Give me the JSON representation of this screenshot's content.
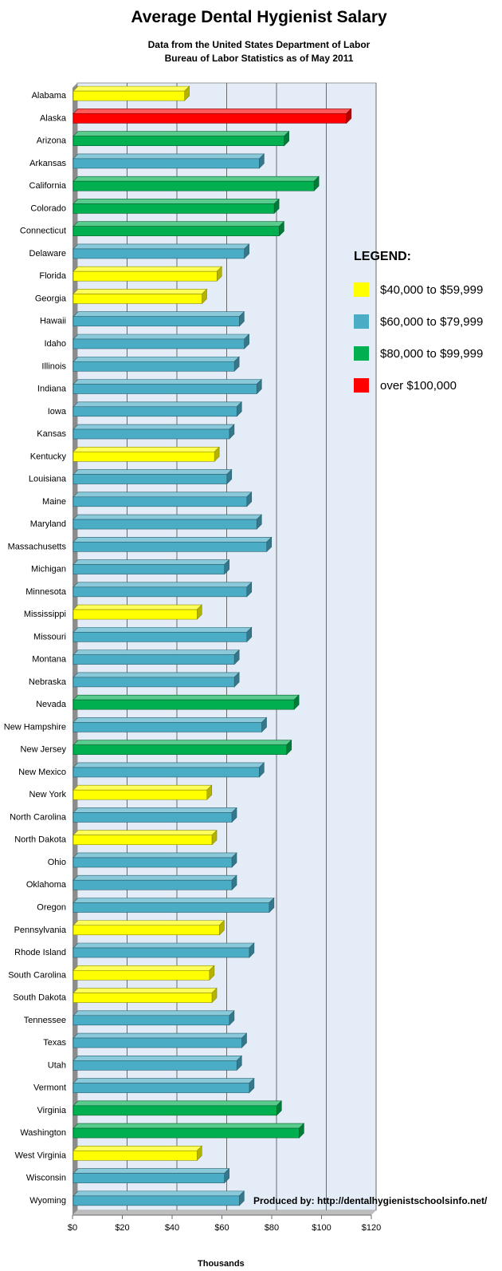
{
  "title": "Average Dental Hygienist Salary",
  "subtitle_lines": [
    "Data from the United States Department of Labor",
    "Bureau of Labor Statistics as of May 2011"
  ],
  "legend": {
    "title": "LEGEND:",
    "items": [
      {
        "label": "$40,000 to $59,999",
        "color": "#ffff00"
      },
      {
        "label": "$60,000 to $79,999",
        "color": "#4bacc6"
      },
      {
        "label": "$80,000 to $99,999",
        "color": "#00b050"
      },
      {
        "label": "over $100,000",
        "color": "#ff0000"
      }
    ]
  },
  "credit": "Produced by: http://dentalhygienistschoolsinfo.net/",
  "chart_data": {
    "type": "bar",
    "orientation": "horizontal",
    "title": "Average Dental Hygienist Salary",
    "xlabel": "Thousands",
    "ylabel": "",
    "xlim": [
      0,
      120
    ],
    "x_ticks": [
      "$0",
      "$20",
      "$40",
      "$60",
      "$80",
      "$100",
      "$120"
    ],
    "grid": true,
    "legend_position": "right",
    "categories": [
      "Alabama",
      "Alaska",
      "Arizona",
      "Arkansas",
      "California",
      "Colorado",
      "Connecticut",
      "Delaware",
      "Florida",
      "Georgia",
      "Hawaii",
      "Idaho",
      "Illinois",
      "Indiana",
      "Iowa",
      "Kansas",
      "Kentucky",
      "Louisiana",
      "Maine",
      "Maryland",
      "Massachusetts",
      "Michigan",
      "Minnesota",
      "Mississippi",
      "Missouri",
      "Montana",
      "Nebraska",
      "Nevada",
      "New Hampshire",
      "New Jersey",
      "New Mexico",
      "New York",
      "North Carolina",
      "North Dakota",
      "Ohio",
      "Oklahoma",
      "Oregon",
      "Pennsylvania",
      "Rhode Island",
      "South Carolina",
      "South Dakota",
      "Tennessee",
      "Texas",
      "Utah",
      "Vermont",
      "Virginia",
      "Washington",
      "West Virginia",
      "Wisconsin",
      "Wyoming"
    ],
    "values": [
      45,
      110,
      85,
      75,
      97,
      81,
      83,
      69,
      58,
      52,
      67,
      69,
      65,
      74,
      66,
      63,
      57,
      62,
      70,
      74,
      78,
      61,
      70,
      50,
      70,
      65,
      65,
      89,
      76,
      86,
      75,
      54,
      64,
      56,
      64,
      64,
      79,
      59,
      71,
      55,
      56,
      63,
      68,
      66,
      71,
      82,
      91,
      50,
      61,
      67
    ]
  }
}
